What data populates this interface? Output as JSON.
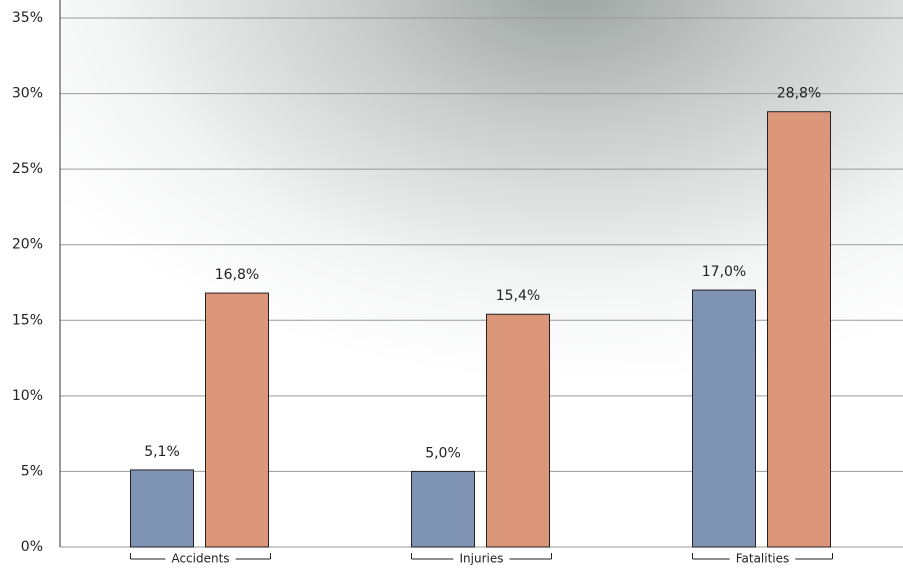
{
  "chart_data": {
    "type": "bar",
    "categories": [
      "Accidents",
      "Injuries",
      "Fatalities"
    ],
    "series": [
      {
        "color": "#7f94b4",
        "values": [
          5.1,
          5.0,
          17.0
        ],
        "value_labels": [
          "5,1%",
          "5,0%",
          "17,0%"
        ]
      },
      {
        "color": "#dc977a",
        "values": [
          16.8,
          15.4,
          28.8
        ],
        "value_labels": [
          "16,8%",
          "15,4%",
          "28,8%"
        ]
      }
    ],
    "ylim": [
      0,
      35
    ],
    "yticks": [
      {
        "value": 0,
        "label": "0%"
      },
      {
        "value": 5,
        "label": "5%"
      },
      {
        "value": 10,
        "label": "10%"
      },
      {
        "value": 15,
        "label": "15%"
      },
      {
        "value": 20,
        "label": "20%"
      },
      {
        "value": 25,
        "label": "25%"
      },
      {
        "value": 30,
        "label": "30%"
      },
      {
        "value": 35,
        "label": "35%"
      }
    ],
    "grid": true
  }
}
